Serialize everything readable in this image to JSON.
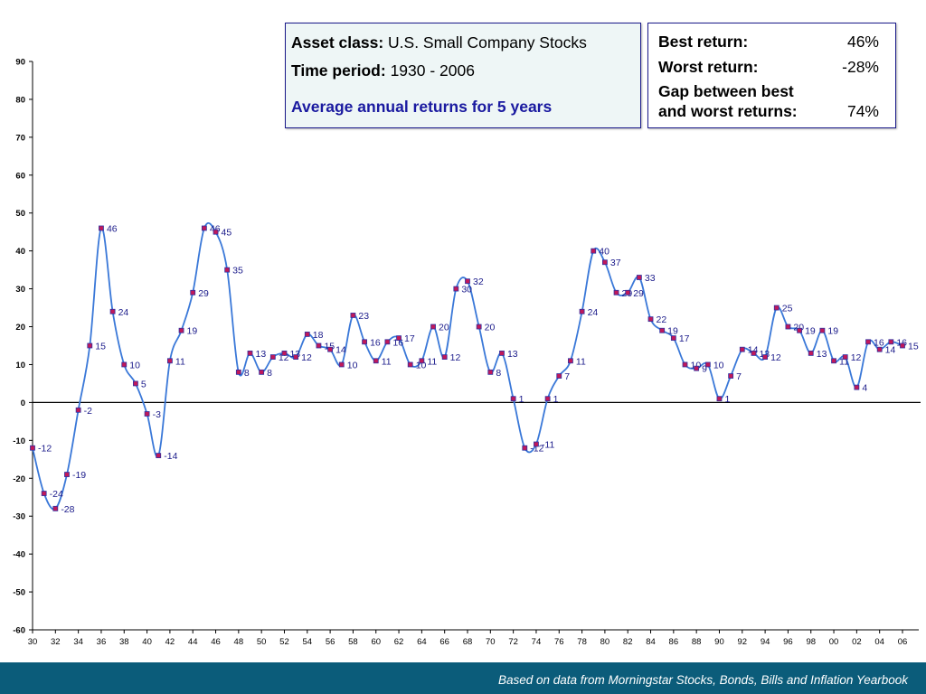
{
  "info": {
    "asset_label": "Asset class:",
    "asset_value": "U.S. Small Company Stocks",
    "period_label": "Time period:",
    "period_value": "1930 - 2006",
    "subtitle": "Average annual returns for 5 years"
  },
  "stats": {
    "best_label": "Best return:",
    "best_value": "46%",
    "worst_label": "Worst return:",
    "worst_value": "-28%",
    "gap_label_1": "Gap between best",
    "gap_label_2": "and worst returns:",
    "gap_value": "74%"
  },
  "footer": {
    "text": "Based on data from Morningstar Stocks, Bonds, Bills and Inflation Yearbook"
  },
  "colors": {
    "line": "#3a78d8",
    "marker_fill": "#c0185a",
    "marker_stroke": "#3030a0",
    "label": "#1a1a8a",
    "footer_bg": "#0b5c7a"
  },
  "chart_data": {
    "type": "line",
    "title": "Average annual returns for 5 years",
    "xlabel": "",
    "ylabel": "",
    "ylim": [
      -60,
      90
    ],
    "yticks": [
      -60,
      -50,
      -40,
      -30,
      -20,
      -10,
      0,
      10,
      20,
      30,
      40,
      50,
      60,
      70,
      80,
      90
    ],
    "xtick_labels": [
      "30",
      "32",
      "34",
      "36",
      "38",
      "40",
      "42",
      "44",
      "46",
      "48",
      "50",
      "52",
      "54",
      "56",
      "58",
      "60",
      "62",
      "64",
      "66",
      "68",
      "70",
      "72",
      "74",
      "76",
      "78",
      "80",
      "82",
      "84",
      "86",
      "88",
      "90",
      "92",
      "94",
      "96",
      "98",
      "00",
      "02",
      "04",
      "06"
    ],
    "x": [
      1930,
      1931,
      1932,
      1933,
      1934,
      1935,
      1936,
      1937,
      1938,
      1939,
      1940,
      1941,
      1942,
      1943,
      1944,
      1945,
      1946,
      1947,
      1948,
      1949,
      1950,
      1951,
      1952,
      1953,
      1954,
      1955,
      1956,
      1957,
      1958,
      1959,
      1960,
      1961,
      1962,
      1963,
      1964,
      1965,
      1966,
      1967,
      1968,
      1969,
      1970,
      1971,
      1972,
      1973,
      1974,
      1975,
      1976,
      1977,
      1978,
      1979,
      1980,
      1981,
      1982,
      1983,
      1984,
      1985,
      1986,
      1987,
      1988,
      1989,
      1990,
      1991,
      1992,
      1993,
      1994,
      1995,
      1996,
      1997,
      1998,
      1999,
      2000,
      2001,
      2002,
      2003,
      2004,
      2005,
      2006
    ],
    "values": [
      -12,
      -24,
      -28,
      -19,
      -2,
      15,
      46,
      24,
      10,
      5,
      -3,
      -14,
      11,
      19,
      29,
      46,
      45,
      35,
      8,
      13,
      8,
      12,
      13,
      12,
      18,
      15,
      14,
      10,
      23,
      16,
      11,
      16,
      17,
      10,
      11,
      20,
      12,
      30,
      32,
      20,
      8,
      13,
      1,
      -12,
      -11,
      1,
      7,
      11,
      24,
      40,
      37,
      29,
      29,
      33,
      22,
      19,
      17,
      10,
      9,
      10,
      1,
      7,
      14,
      13,
      12,
      25,
      20,
      19,
      13,
      19,
      11,
      12,
      4,
      16,
      14,
      16,
      15
    ],
    "grid": false,
    "legend": "none"
  }
}
